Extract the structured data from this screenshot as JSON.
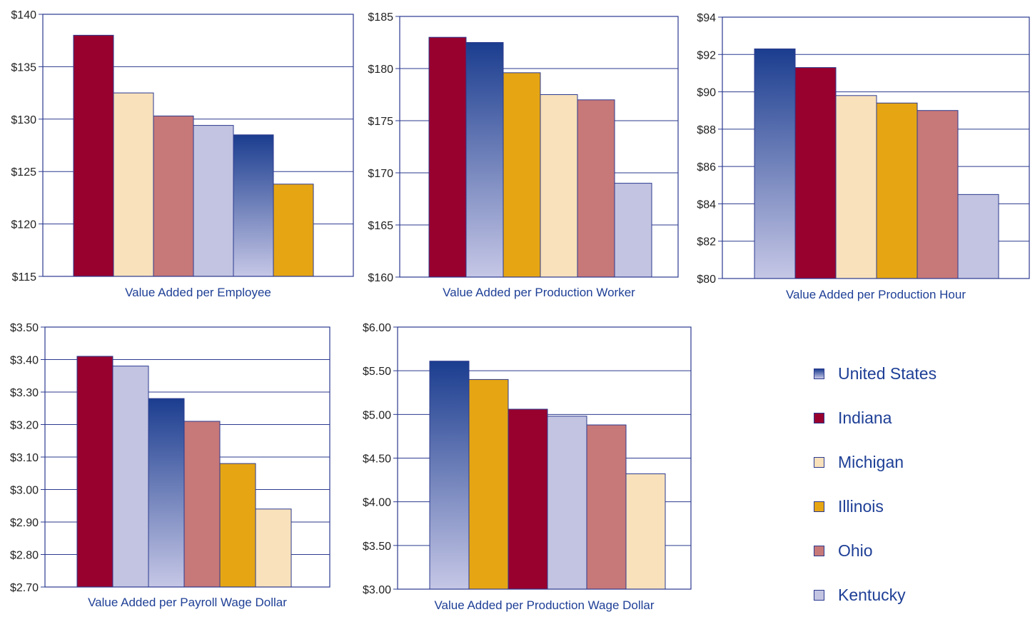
{
  "colors": {
    "axis": "#2b3a8f",
    "grid": "#2b3a8f",
    "text": "#1e3f96",
    "tick_text": "#222222",
    "Indiana": "#98002e",
    "Michigan": "#f8e1bb",
    "Ohio": "#c77878",
    "Kentucky": "#c3c4e1",
    "Illinois": "#e6a614",
    "United States_top": "#1b3d8f",
    "United States_bottom": "#c6c7e6"
  },
  "legend": {
    "items": [
      {
        "label": "United States",
        "key": "United States"
      },
      {
        "label": "Indiana",
        "key": "Indiana"
      },
      {
        "label": "Michigan",
        "key": "Michigan"
      },
      {
        "label": "Illinois",
        "key": "Illinois"
      },
      {
        "label": "Ohio",
        "key": "Ohio"
      },
      {
        "label": "Kentucky",
        "key": "Kentucky"
      }
    ]
  },
  "chart_data": [
    {
      "type": "bar",
      "xlabel": "Value Added per Employee",
      "categories": [
        "Indiana",
        "Michigan",
        "Ohio",
        "Kentucky",
        "United States",
        "Illinois"
      ],
      "values": [
        138.0,
        132.5,
        130.3,
        129.4,
        128.5,
        123.8
      ],
      "ylim": [
        115,
        140
      ],
      "yticks": [
        115,
        120,
        125,
        130,
        135,
        140
      ],
      "ytick_labels": [
        "$115",
        "$120",
        "$125",
        "$130",
        "$135",
        "$140"
      ],
      "grid": true
    },
    {
      "type": "bar",
      "xlabel": "Value Added per Production Worker",
      "categories": [
        "Indiana",
        "United States",
        "Illinois",
        "Michigan",
        "Ohio",
        "Kentucky"
      ],
      "values": [
        183.0,
        182.5,
        179.6,
        177.5,
        177.0,
        169.0
      ],
      "ylim": [
        160,
        185
      ],
      "yticks": [
        160,
        165,
        170,
        175,
        180,
        185
      ],
      "ytick_labels": [
        "$160",
        "$165",
        "$170",
        "$175",
        "$180",
        "$185"
      ],
      "grid": true
    },
    {
      "type": "bar",
      "xlabel": "Value Added per Production Hour",
      "categories": [
        "United States",
        "Indiana",
        "Michigan",
        "Illinois",
        "Ohio",
        "Kentucky"
      ],
      "values": [
        92.3,
        91.3,
        89.8,
        89.4,
        89.0,
        84.5
      ],
      "ylim": [
        80,
        94
      ],
      "yticks": [
        80,
        82,
        84,
        86,
        88,
        90,
        92,
        94
      ],
      "ytick_labels": [
        "$80",
        "$82",
        "$84",
        "$86",
        "$88",
        "$90",
        "$92",
        "$94"
      ],
      "grid": true
    },
    {
      "type": "bar",
      "xlabel": "Value Added per Payroll Wage Dollar",
      "categories": [
        "Indiana",
        "Kentucky",
        "United States",
        "Ohio",
        "Illinois",
        "Michigan"
      ],
      "values": [
        3.41,
        3.38,
        3.28,
        3.21,
        3.08,
        2.94
      ],
      "ylim": [
        2.7,
        3.5
      ],
      "yticks": [
        2.7,
        2.8,
        2.9,
        3.0,
        3.1,
        3.2,
        3.3,
        3.4,
        3.5
      ],
      "ytick_labels": [
        "$2.70",
        "$2.80",
        "$2.90",
        "$3.00",
        "$3.10",
        "$3.20",
        "$3.30",
        "$3.40",
        "$3.50"
      ],
      "grid": true
    },
    {
      "type": "bar",
      "xlabel": "Value Added per Production Wage Dollar",
      "categories": [
        "United States",
        "Illinois",
        "Indiana",
        "Kentucky",
        "Ohio",
        "Michigan"
      ],
      "values": [
        5.61,
        5.4,
        5.06,
        4.98,
        4.88,
        4.32
      ],
      "ylim": [
        3.0,
        6.0
      ],
      "yticks": [
        3.0,
        3.5,
        4.0,
        4.5,
        5.0,
        5.5,
        6.0
      ],
      "ytick_labels": [
        "$3.00",
        "$3.50",
        "$4.00",
        "$4.50",
        "$5.00",
        "$5.50",
        "$6.00"
      ],
      "grid": true
    }
  ]
}
